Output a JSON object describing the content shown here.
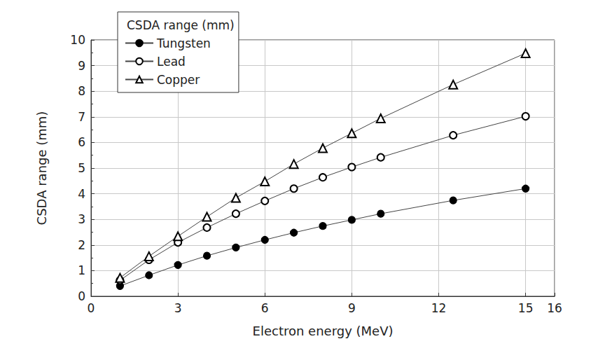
{
  "chart_data": {
    "type": "line",
    "title": "CSDA range (mm)",
    "x_label": "Electron energy (MeV)",
    "y_label": "CSDA range (mm)",
    "x": [
      1,
      2,
      3,
      4,
      5,
      6,
      7,
      8,
      9,
      10,
      12.5,
      15
    ],
    "series": [
      {
        "name": "Tungsten",
        "color": "#000000",
        "marker": "filled_circle",
        "values": [
          0.4,
          0.82,
          1.22,
          1.58,
          1.9,
          2.2,
          2.48,
          2.74,
          2.98,
          3.22,
          3.74,
          4.2
        ]
      },
      {
        "name": "Lead",
        "color": "#000000",
        "marker": "open_circle",
        "values": [
          0.62,
          1.42,
          2.1,
          2.68,
          3.22,
          3.72,
          4.2,
          4.64,
          5.04,
          5.42,
          6.28,
          7.02
        ]
      },
      {
        "name": "Copper",
        "color": "#000000",
        "marker": "open_triangle",
        "values": [
          0.72,
          1.56,
          2.34,
          3.1,
          3.84,
          4.48,
          5.16,
          5.78,
          6.36,
          6.94,
          8.26,
          9.48
        ]
      }
    ],
    "xlim": [
      0,
      16
    ],
    "xticks": [
      0,
      3,
      6,
      9,
      12,
      15
    ],
    "ylim": [
      0,
      10
    ],
    "yticks": [
      0,
      1,
      2,
      3,
      4,
      5,
      6,
      7,
      8,
      9,
      10
    ],
    "grid": true,
    "legend": "upper left"
  }
}
